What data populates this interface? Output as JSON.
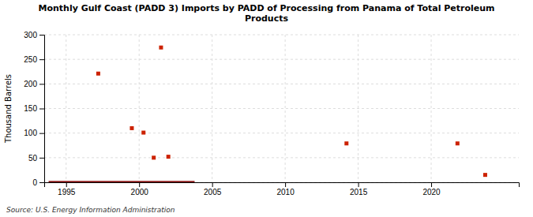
{
  "chart_data": {
    "type": "scatter",
    "title": "Monthly Gulf Coast (PADD 3) Imports by PADD of Processing from Panama of Total Petroleum\nProducts",
    "ylabel": "Thousand Barrels",
    "annotations": [
      "Source: U.S. Energy Information Administration"
    ],
    "xlim": [
      1993.5,
      2026
    ],
    "ylim": [
      0,
      300
    ],
    "xticks": [
      1995,
      2000,
      2005,
      2010,
      2015,
      2020
    ],
    "yticks": [
      0,
      50,
      100,
      150,
      200,
      250,
      300
    ],
    "grid": true,
    "series": [
      {
        "type": "line",
        "color": "#8b1a1a",
        "x": [
          1993.8,
          2003.8
        ],
        "values": [
          0,
          0
        ]
      },
      {
        "type": "scatter",
        "color": "#cc2200",
        "marker": "square",
        "x": [
          1997.2,
          1999.5,
          2000.3,
          2001.0,
          2001.5,
          2002.0,
          2014.2,
          2021.8,
          2023.7
        ],
        "values": [
          221,
          110,
          101,
          50,
          274,
          52,
          79,
          79,
          15
        ]
      }
    ]
  }
}
